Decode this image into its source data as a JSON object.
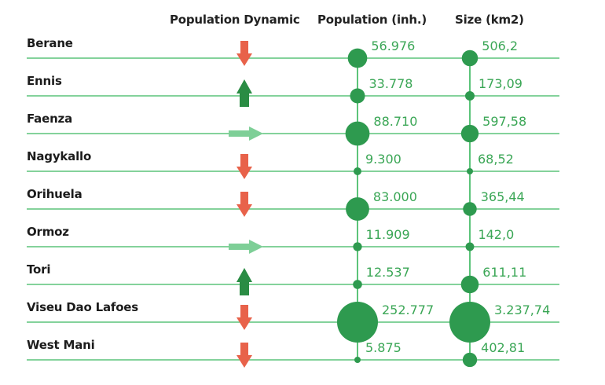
{
  "colors": {
    "line": "#5cc47a",
    "bubble": "#2e9a4f",
    "value_text": "#3aa655",
    "arrow_down": "#e8624a",
    "arrow_up": "#2a8c44",
    "arrow_stable": "#7ecf97"
  },
  "headers": {
    "dynamic": "Population Dynamic",
    "population": "Population (inh.)",
    "size": "Size (km2)"
  },
  "chart_data": {
    "type": "table",
    "columns": [
      "Population Dynamic",
      "Population (inh.)",
      "Size (km2)"
    ],
    "rows": [
      {
        "name": "Berane",
        "dynamic": "down",
        "population": 56976,
        "population_label": "56.976",
        "size": 506.2,
        "size_label": "506,2"
      },
      {
        "name": "Ennis",
        "dynamic": "up",
        "population": 33778,
        "population_label": "33.778",
        "size": 173.09,
        "size_label": "173,09"
      },
      {
        "name": "Faenza",
        "dynamic": "stable",
        "population": 88710,
        "population_label": "88.710",
        "size": 597.58,
        "size_label": "597,58"
      },
      {
        "name": "Nagykallo",
        "dynamic": "down",
        "population": 9300,
        "population_label": "9.300",
        "size": 68.52,
        "size_label": "68,52"
      },
      {
        "name": "Orihuela",
        "dynamic": "down",
        "population": 83000,
        "population_label": "83.000",
        "size": 365.44,
        "size_label": "365,44"
      },
      {
        "name": "Ormoz",
        "dynamic": "stable",
        "population": 11909,
        "population_label": "11.909",
        "size": 142.0,
        "size_label": "142,0"
      },
      {
        "name": "Tori",
        "dynamic": "up",
        "population": 12537,
        "population_label": "12.537",
        "size": 611.11,
        "size_label": "611,11"
      },
      {
        "name": "Viseu Dao Lafoes",
        "dynamic": "down",
        "population": 252777,
        "population_label": "252.777",
        "size": 3237.74,
        "size_label": "3.237,74"
      },
      {
        "name": "West Mani",
        "dynamic": "down",
        "population": 5875,
        "population_label": "5.875",
        "size": 402.81,
        "size_label": "402,81"
      }
    ]
  }
}
